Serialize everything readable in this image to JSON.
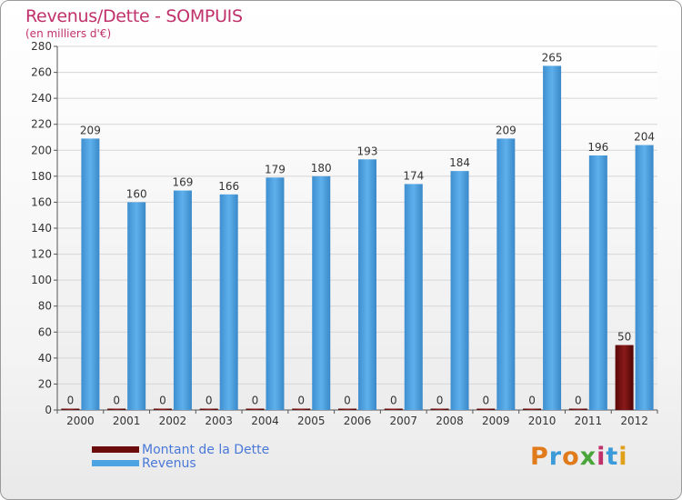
{
  "title": "Revenus/Dette - SOMPUIS",
  "subtitle": "(en milliers d'€)",
  "legend": [
    {
      "label": "Montant de la Dette",
      "color": "#6b0b0b"
    },
    {
      "label": "Revenus",
      "color": "#4ea3e2"
    }
  ],
  "logo": {
    "text": "Proxiti",
    "colors": [
      "#e07a1a",
      "#3a9bd8",
      "#e07a1a",
      "#4aa63a",
      "#c0306a",
      "#3a9bd8",
      "#e0a01a"
    ]
  },
  "chart_data": {
    "type": "bar",
    "title": "Revenus/Dette - SOMPUIS",
    "subtitle": "(en milliers d'€)",
    "categories": [
      "2000",
      "2001",
      "2002",
      "2003",
      "2004",
      "2005",
      "2006",
      "2007",
      "2008",
      "2009",
      "2010",
      "2011",
      "2012"
    ],
    "series": [
      {
        "name": "Montant de la Dette",
        "color": "#6b0b0b",
        "values": [
          0,
          0,
          0,
          0,
          0,
          0,
          0,
          0,
          0,
          0,
          0,
          0,
          50
        ]
      },
      {
        "name": "Revenus",
        "color": "#4ea3e2",
        "values": [
          209,
          160,
          169,
          166,
          179,
          180,
          193,
          174,
          184,
          209,
          265,
          196,
          204
        ]
      }
    ],
    "ylim": [
      0,
      280
    ],
    "yticks": [
      0,
      20,
      40,
      60,
      80,
      100,
      120,
      140,
      160,
      180,
      200,
      220,
      240,
      260,
      280
    ],
    "grid": true,
    "legend_position": "bottom-left"
  }
}
